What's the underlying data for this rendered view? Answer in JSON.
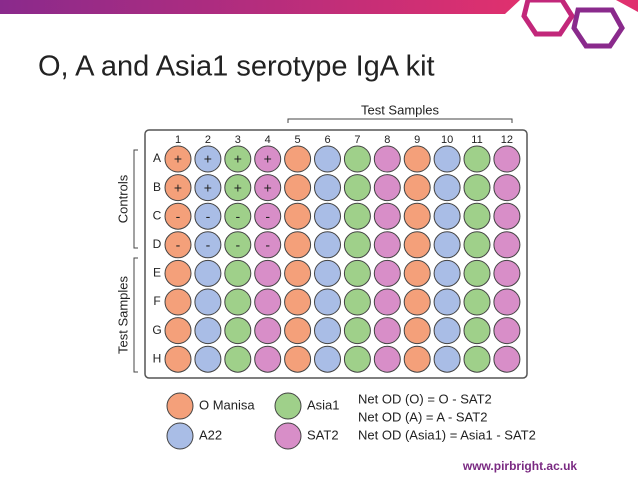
{
  "title": "O, A and Asia1 serotype IgA kit",
  "plate": {
    "top_label": "Test Samples",
    "side_labels": [
      "Controls",
      "Test Samples"
    ],
    "columns": [
      "1",
      "2",
      "3",
      "4",
      "5",
      "6",
      "7",
      "8",
      "9",
      "10",
      "11",
      "12"
    ],
    "rows": [
      "A",
      "B",
      "C",
      "D",
      "E",
      "F",
      "G",
      "H"
    ],
    "control_symbols": [
      [
        "+",
        "+",
        "+",
        "+"
      ],
      [
        "+",
        "+",
        "+",
        "+"
      ],
      [
        "-",
        "-",
        "-",
        "-"
      ],
      [
        "-",
        "-",
        "-",
        "-"
      ]
    ]
  },
  "legend": [
    {
      "name": "O Manisa",
      "color": "#f4a07a"
    },
    {
      "name": "A22",
      "color": "#a9bde6"
    },
    {
      "name": "Asia1",
      "color": "#9fd08a"
    },
    {
      "name": "SAT2",
      "color": "#d88ec8"
    }
  ],
  "formulas": [
    "Net OD (O) = O - SAT2",
    "Net OD (A) = A - SAT2",
    "Net OD (Asia1) = Asia1 - SAT2"
  ],
  "footer": "www.pirbright.ac.uk"
}
